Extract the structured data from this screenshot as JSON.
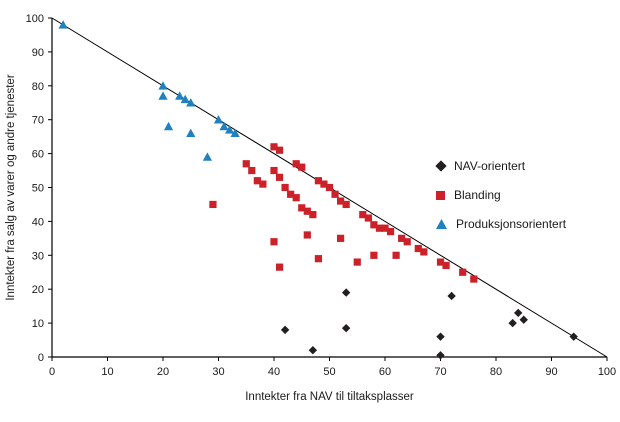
{
  "page": {
    "background": "#ffffff"
  },
  "chart_data": {
    "type": "scatter",
    "title": "",
    "xlabel": "Inntekter fra NAV til tiltaksplasser",
    "ylabel": "Inntekter fra salg av varer og andre tjenester",
    "xlim": [
      0,
      100
    ],
    "ylim": [
      0,
      100
    ],
    "xticks": [
      0,
      10,
      20,
      30,
      40,
      50,
      60,
      70,
      80,
      90,
      100
    ],
    "yticks": [
      0,
      10,
      20,
      30,
      40,
      50,
      60,
      70,
      80,
      90,
      100
    ],
    "grid": false,
    "legend_position": "middle-right",
    "axis_color": "#000000",
    "reference_line": {
      "from": [
        0,
        100
      ],
      "to": [
        100,
        0
      ],
      "color": "#000000"
    },
    "series": [
      {
        "id": "nav-orientert",
        "name": "NAV-orientert",
        "marker": "diamond",
        "color": "#231f20",
        "points": [
          [
            42,
            8
          ],
          [
            47,
            2
          ],
          [
            53,
            19
          ],
          [
            53,
            8.5
          ],
          [
            70,
            0.5
          ],
          [
            70,
            6
          ],
          [
            72,
            18
          ],
          [
            83,
            10
          ],
          [
            84,
            13
          ],
          [
            85,
            11
          ],
          [
            94,
            6
          ]
        ]
      },
      {
        "id": "blanding",
        "name": "Blanding",
        "marker": "square",
        "color": "#cc2128",
        "points": [
          [
            29,
            45
          ],
          [
            35,
            57
          ],
          [
            36,
            55
          ],
          [
            37,
            52
          ],
          [
            38,
            51
          ],
          [
            40,
            62
          ],
          [
            41,
            61
          ],
          [
            40,
            55
          ],
          [
            41,
            53
          ],
          [
            42,
            50
          ],
          [
            43,
            48
          ],
          [
            40,
            34
          ],
          [
            41,
            26.5
          ],
          [
            44,
            57
          ],
          [
            45,
            56
          ],
          [
            44,
            47
          ],
          [
            45,
            44
          ],
          [
            46,
            43
          ],
          [
            47,
            42
          ],
          [
            46,
            36
          ],
          [
            48,
            29
          ],
          [
            48,
            52
          ],
          [
            49,
            51
          ],
          [
            50,
            50
          ],
          [
            51,
            48
          ],
          [
            52,
            46
          ],
          [
            53,
            45
          ],
          [
            52,
            35
          ],
          [
            55,
            28
          ],
          [
            56,
            42
          ],
          [
            57,
            41
          ],
          [
            58,
            39
          ],
          [
            59,
            38
          ],
          [
            58,
            30
          ],
          [
            60,
            38
          ],
          [
            61,
            37
          ],
          [
            62,
            30
          ],
          [
            63,
            35
          ],
          [
            64,
            34
          ],
          [
            66,
            32
          ],
          [
            67,
            31
          ],
          [
            70,
            28
          ],
          [
            71,
            27
          ],
          [
            74,
            25
          ],
          [
            76,
            23
          ]
        ]
      },
      {
        "id": "produksjonsorientert",
        "name": "Produksjonsorientert",
        "marker": "triangle",
        "color": "#2181bf",
        "points": [
          [
            2,
            98
          ],
          [
            20,
            80
          ],
          [
            20,
            77
          ],
          [
            23,
            77
          ],
          [
            24,
            76
          ],
          [
            25,
            75
          ],
          [
            21,
            68
          ],
          [
            25,
            66
          ],
          [
            28,
            59
          ],
          [
            30,
            70
          ],
          [
            31,
            68
          ],
          [
            32,
            67
          ],
          [
            33,
            66
          ]
        ]
      }
    ]
  }
}
